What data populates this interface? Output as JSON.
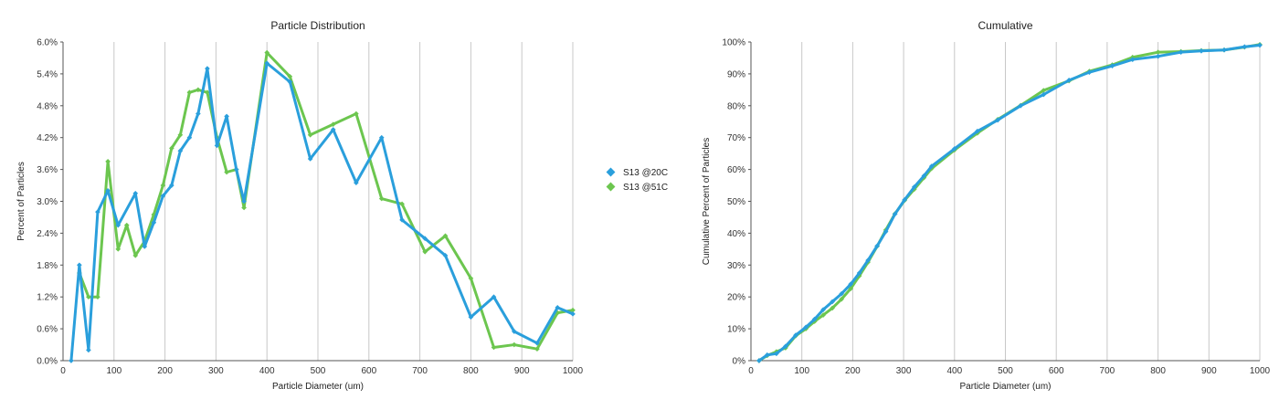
{
  "chart_data": [
    {
      "type": "line",
      "title": "Particle Distribution",
      "xlabel": "Particle Diameter (um)",
      "ylabel": "Percent of Particles",
      "xlim": [
        0,
        1000
      ],
      "ylim": [
        0,
        6
      ],
      "x_ticks": [
        "0",
        "100",
        "200",
        "300",
        "400",
        "500",
        "600",
        "700",
        "800",
        "900",
        "1000"
      ],
      "y_ticks": [
        "0.0%",
        "0.6%",
        "1.2%",
        "1.8%",
        "2.4%",
        "3.0%",
        "3.6%",
        "4.2%",
        "4.8%",
        "5.4%",
        "6.0%"
      ],
      "grid": "vertical",
      "legend": "right",
      "series": [
        {
          "name": "S13 @20C",
          "color": "#2a9fdc",
          "x": [
            16,
            32,
            50,
            68,
            88,
            108,
            142,
            160,
            178,
            196,
            213,
            230,
            248,
            265,
            283,
            302,
            321,
            340,
            355,
            400,
            445,
            485,
            530,
            575,
            625,
            665,
            710,
            750,
            800,
            845,
            885,
            930,
            970,
            1000
          ],
          "y": [
            0.0,
            1.8,
            0.2,
            2.8,
            3.2,
            2.55,
            3.15,
            2.15,
            2.6,
            3.1,
            3.3,
            3.95,
            4.2,
            4.65,
            5.5,
            4.05,
            4.6,
            3.6,
            3.0,
            5.6,
            5.25,
            3.8,
            4.35,
            3.35,
            4.2,
            2.65,
            2.3,
            1.98,
            0.82,
            1.2,
            0.55,
            0.33,
            1.0,
            0.88
          ]
        },
        {
          "name": "S13 @51C",
          "color": "#6cc64f",
          "x": [
            32,
            50,
            68,
            88,
            108,
            125,
            142,
            160,
            178,
            196,
            213,
            230,
            248,
            265,
            283,
            302,
            321,
            340,
            355,
            400,
            445,
            485,
            530,
            575,
            625,
            665,
            710,
            750,
            800,
            845,
            885,
            930,
            970,
            1000
          ],
          "y": [
            1.65,
            1.2,
            1.2,
            3.75,
            2.1,
            2.55,
            1.98,
            2.25,
            2.75,
            3.3,
            4.0,
            4.25,
            5.05,
            5.1,
            5.05,
            4.2,
            3.55,
            3.6,
            2.88,
            5.8,
            5.35,
            4.25,
            4.45,
            4.65,
            3.05,
            2.95,
            2.05,
            2.35,
            1.55,
            0.25,
            0.3,
            0.22,
            0.9,
            0.95
          ]
        }
      ]
    },
    {
      "type": "line",
      "title": "Cumulative",
      "xlabel": "Particle Diameter (um)",
      "ylabel": "Cumulative Percent of Particles",
      "xlim": [
        0,
        1000
      ],
      "ylim": [
        0,
        100
      ],
      "x_ticks": [
        "0",
        "100",
        "200",
        "300",
        "400",
        "500",
        "600",
        "700",
        "800",
        "900",
        "1000"
      ],
      "y_ticks": [
        "0%",
        "10%",
        "20%",
        "30%",
        "40%",
        "50%",
        "60%",
        "70%",
        "80%",
        "90%",
        "100%"
      ],
      "grid": "vertical",
      "series": [
        {
          "name": "S13 @20C",
          "color": "#2a9fdc",
          "x": [
            16,
            32,
            50,
            68,
            88,
            108,
            125,
            142,
            160,
            178,
            196,
            213,
            230,
            248,
            265,
            283,
            302,
            321,
            340,
            355,
            400,
            445,
            485,
            530,
            575,
            625,
            665,
            710,
            750,
            800,
            845,
            885,
            930,
            970,
            1000
          ],
          "y": [
            0,
            1.8,
            2.2,
            4.5,
            8.0,
            10.5,
            13.0,
            16.0,
            18.5,
            21.0,
            24.0,
            27.5,
            31.5,
            36.0,
            40.5,
            46.0,
            50.5,
            54.5,
            58.0,
            61.0,
            66.5,
            72.0,
            75.5,
            80.0,
            83.5,
            88.0,
            90.5,
            92.5,
            94.5,
            95.5,
            96.8,
            97.2,
            97.5,
            98.5,
            99.0
          ]
        },
        {
          "name": "S13 @51C",
          "color": "#6cc64f",
          "x": [
            16,
            32,
            50,
            68,
            88,
            108,
            125,
            142,
            160,
            178,
            196,
            213,
            230,
            248,
            265,
            283,
            302,
            321,
            340,
            355,
            400,
            445,
            485,
            530,
            575,
            625,
            665,
            710,
            750,
            800,
            845,
            885,
            930,
            970,
            1000
          ],
          "y": [
            0,
            1.6,
            2.8,
            4.0,
            7.8,
            10.0,
            12.3,
            14.3,
            16.5,
            19.3,
            22.6,
            26.6,
            30.9,
            35.9,
            41.0,
            46.1,
            50.3,
            53.8,
            57.4,
            60.3,
            66.1,
            71.4,
            75.7,
            80.1,
            84.8,
            87.8,
            90.8,
            92.8,
            95.2,
            96.8,
            97.0,
            97.3,
            97.5,
            98.4,
            99.2
          ]
        }
      ]
    }
  ]
}
